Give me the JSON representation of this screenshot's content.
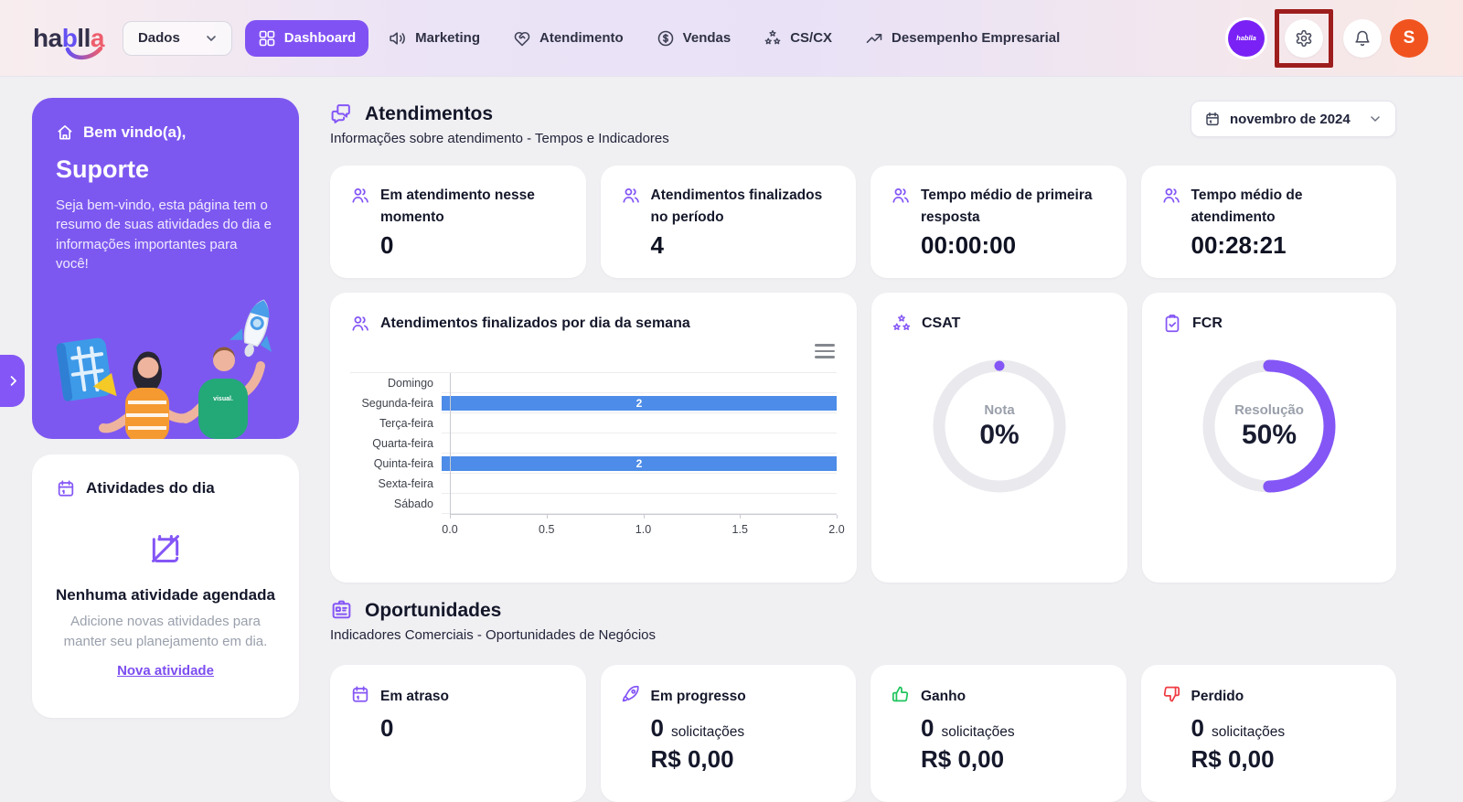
{
  "brand": {
    "logo_text": "hablla",
    "workspace_badge_label": "hablla"
  },
  "header": {
    "dataset_select": {
      "value": "Dados"
    },
    "nav_items": [
      {
        "label": "Dashboard",
        "icon": "dashboard-grid",
        "active": true
      },
      {
        "label": "Marketing",
        "icon": "megaphone",
        "active": false
      },
      {
        "label": "Atendimento",
        "icon": "heart-handshake",
        "active": false
      },
      {
        "label": "Vendas",
        "icon": "dollar-circle",
        "active": false
      },
      {
        "label": "CS/CX",
        "icon": "stars",
        "active": false
      },
      {
        "label": "Desempenho Empresarial",
        "icon": "trend-up",
        "active": false
      }
    ],
    "actions": {
      "avatar_initial": "S"
    }
  },
  "sidebar": {
    "welcome_card": {
      "greeting": "Bem vindo(a),",
      "username": "Suporte",
      "description": "Seja bem-vindo, esta página tem o resumo de suas atividades do dia e informações importantes para você!",
      "illustration_label": "visual."
    },
    "activities_card": {
      "title": "Atividades do dia",
      "empty_title": "Nenhuma atividade agendada",
      "empty_description": "Adicione novas atividades para manter seu planejamento em dia.",
      "link_label": "Nova atividade"
    }
  },
  "date_picker": {
    "value": "novembro de 2024"
  },
  "atendimentos": {
    "title": "Atendimentos",
    "subtitle": "Informações sobre atendimento - Tempos e Indicadores",
    "stats": [
      {
        "label": "Em atendimento nesse momento",
        "value": "0"
      },
      {
        "label": "Atendimentos finalizados no período",
        "value": "4"
      },
      {
        "label": "Tempo médio de primeira resposta",
        "value": "00:00:00"
      },
      {
        "label": "Tempo médio de atendimento",
        "value": "00:28:21"
      }
    ],
    "csat": {
      "title": "CSAT",
      "label": "Nota",
      "value": "0%",
      "percent": 0
    },
    "fcr": {
      "title": "FCR",
      "label": "Resolução",
      "value": "50%",
      "percent": 50
    }
  },
  "chart_data": {
    "type": "bar",
    "orientation": "horizontal",
    "title": "Atendimentos finalizados por dia da semana",
    "categories": [
      "Domingo",
      "Segunda-feira",
      "Terça-feira",
      "Quarta-feira",
      "Quinta-feira",
      "Sexta-feira",
      "Sábado"
    ],
    "values": [
      0,
      2,
      0,
      0,
      2,
      0,
      0
    ],
    "bar_labels": [
      "",
      "2",
      "",
      "",
      "2",
      "",
      ""
    ],
    "xticks": [
      "0.0",
      "0.5",
      "1.0",
      "1.5",
      "2.0"
    ],
    "xlim": [
      0,
      2
    ],
    "bar_color": "#4d8ce8",
    "grid": true,
    "legend": false
  },
  "oportunidades": {
    "title": "Oportunidades",
    "subtitle": "Indicadores Comerciais - Oportunidades de Negócios",
    "cards": [
      {
        "label": "Em atraso",
        "value": "0",
        "unit": "",
        "amount": "",
        "icon": "calendar",
        "icon_color": "#8456f6"
      },
      {
        "label": "Em progresso",
        "value": "0",
        "unit": "solicitações",
        "amount": "R$ 0,00",
        "icon": "rocket",
        "icon_color": "#8456f6"
      },
      {
        "label": "Ganho",
        "value": "0",
        "unit": "solicitações",
        "amount": "R$ 0,00",
        "icon": "thumbs-up",
        "icon_color": "#1fc55e"
      },
      {
        "label": "Perdido",
        "value": "0",
        "unit": "solicitações",
        "amount": "R$ 0,00",
        "icon": "thumbs-down",
        "icon_color": "#ef3b42"
      }
    ]
  },
  "colors": {
    "accent_purple": "#8456f6",
    "nav_active": "#8152f3",
    "welcome_bg": "#7d58f0",
    "bar_blue": "#4d8ce8",
    "donut_track": "#e9e9ee",
    "success_green": "#1fc55e",
    "danger_red": "#ef3b42",
    "highlight_box_red": "#9e1d1d",
    "avatar_orange": "#f1531f"
  }
}
